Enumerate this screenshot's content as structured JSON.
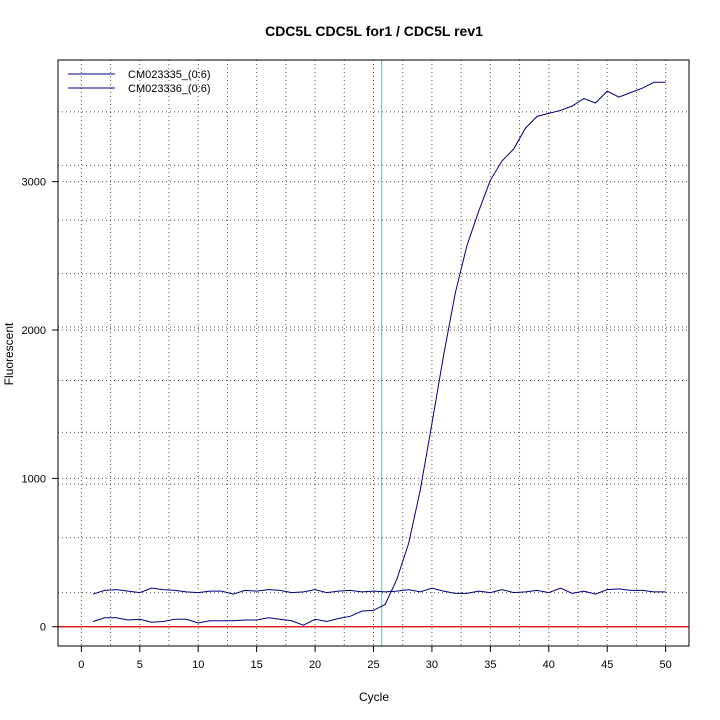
{
  "chart_data": {
    "type": "line",
    "title": "CDC5L  CDC5L for1 / CDC5L rev1",
    "xlabel": "Cycle",
    "ylabel": "Fluorescent",
    "xlim": [
      -2,
      52
    ],
    "ylim": [
      -130,
      3820
    ],
    "x_ticks": [
      0,
      5,
      10,
      15,
      20,
      25,
      30,
      35,
      40,
      45,
      50
    ],
    "y_ticks": [
      0,
      1000,
      2000,
      3000
    ],
    "x_grid": [
      2.5,
      7.5,
      12.5,
      17.5,
      22.5,
      27.5,
      32.5,
      37.5,
      42.5,
      47.5
    ],
    "y_grid": [
      230,
      600,
      960,
      1310,
      1660,
      2020,
      2380,
      2740,
      3110,
      3470
    ],
    "grid": true,
    "legend_position": "top-left",
    "threshold_x": 25.7,
    "baseline_y": 0,
    "threshold_color": "#00e5ee",
    "baseline_color": "#dd0000",
    "series": [
      {
        "name": "CM023335_(0:6)",
        "color": "#000080",
        "x": [
          1,
          2,
          3,
          4,
          5,
          6,
          7,
          8,
          9,
          10,
          11,
          12,
          13,
          14,
          15,
          16,
          17,
          18,
          19,
          20,
          21,
          22,
          23,
          24,
          25,
          26,
          27,
          28,
          29,
          30,
          31,
          32,
          33,
          34,
          35,
          36,
          37,
          38,
          39,
          40,
          41,
          42,
          43,
          44,
          45,
          46,
          47,
          48,
          49,
          50
        ],
        "values": [
          35,
          60,
          60,
          45,
          50,
          30,
          35,
          50,
          50,
          25,
          40,
          40,
          40,
          45,
          45,
          60,
          50,
          40,
          10,
          50,
          35,
          55,
          70,
          105,
          110,
          150,
          320,
          560,
          920,
          1370,
          1830,
          2250,
          2570,
          2800,
          3010,
          3140,
          3220,
          3360,
          3440,
          3460,
          3480,
          3510,
          3560,
          3530,
          3610,
          3570,
          3600,
          3630,
          3670,
          3670
        ]
      },
      {
        "name": "CM023336_(0:6)",
        "color": "#000080",
        "x": [
          1,
          2,
          3,
          4,
          5,
          6,
          7,
          8,
          9,
          10,
          11,
          12,
          13,
          14,
          15,
          16,
          17,
          18,
          19,
          20,
          21,
          22,
          23,
          24,
          25,
          26,
          27,
          28,
          29,
          30,
          31,
          32,
          33,
          34,
          35,
          36,
          37,
          38,
          39,
          40,
          41,
          42,
          43,
          44,
          45,
          46,
          47,
          48,
          49,
          50
        ],
        "values": [
          220,
          245,
          250,
          240,
          230,
          260,
          250,
          245,
          235,
          230,
          240,
          240,
          220,
          245,
          240,
          250,
          245,
          230,
          235,
          250,
          230,
          240,
          245,
          235,
          240,
          235,
          240,
          250,
          235,
          260,
          240,
          225,
          225,
          240,
          230,
          250,
          230,
          235,
          245,
          230,
          260,
          225,
          240,
          220,
          250,
          255,
          245,
          245,
          235,
          235
        ]
      }
    ]
  }
}
